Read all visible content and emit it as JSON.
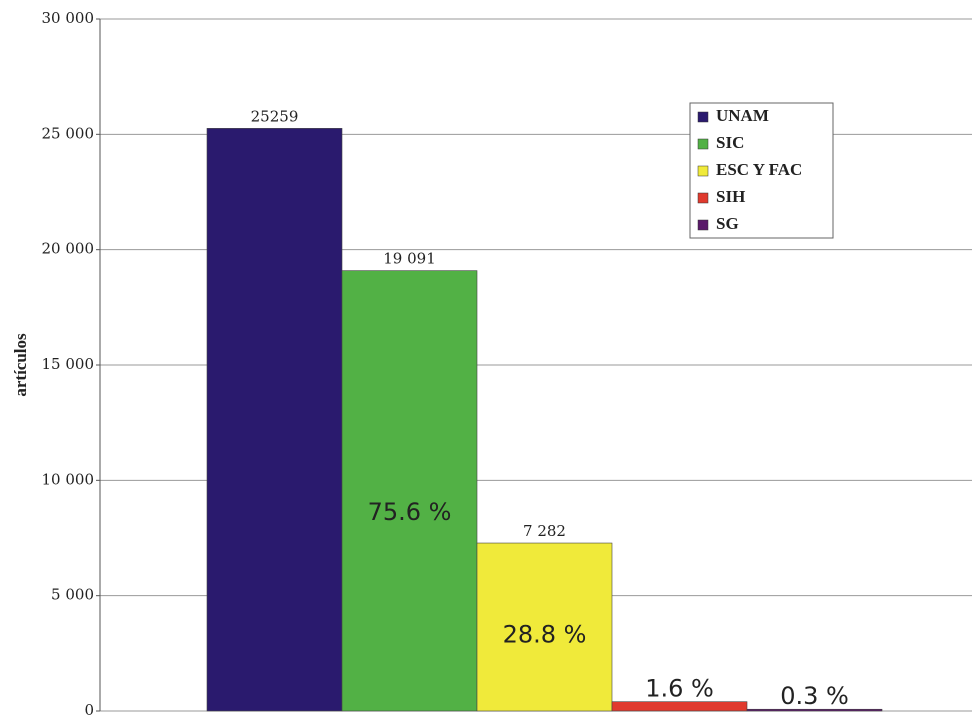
{
  "chart_data": {
    "type": "bar",
    "y_label": "artículos",
    "ylim": [
      0,
      30000
    ],
    "yticks": [
      0,
      {
        "value": 5000,
        "label": "5 000"
      },
      {
        "value": 10000,
        "label": "10 000"
      },
      {
        "value": 15000,
        "label": "15 000"
      },
      {
        "value": 20000,
        "label": "20 000"
      },
      {
        "value": 25000,
        "label": "25 000"
      },
      {
        "value": 30000,
        "label": "30 000"
      }
    ],
    "grid": true,
    "legend": "upper right",
    "series": [
      {
        "name": "UNAM",
        "color": "#2a1a6e",
        "values": [
          25259
        ]
      },
      {
        "name": "SIC",
        "color": "#52b145",
        "values": [
          19091
        ],
        "value_labels": [
          "19 091"
        ],
        "percent_labels": [
          "75.6 %"
        ]
      },
      {
        "name": "ESC Y FAC",
        "color": "#f0ea3a",
        "values": [
          7282
        ],
        "value_labels": [
          "7 282"
        ],
        "percent_labels": [
          "28.8 %"
        ]
      },
      {
        "name": "SIH",
        "color": "#e03a2e",
        "values": [
          404
        ],
        "percent_labels": [
          "1.6 %"
        ]
      },
      {
        "name": "SG",
        "color": "#5a1a6a",
        "values": [
          76
        ],
        "percent_labels": [
          "0.3 %"
        ]
      }
    ]
  }
}
